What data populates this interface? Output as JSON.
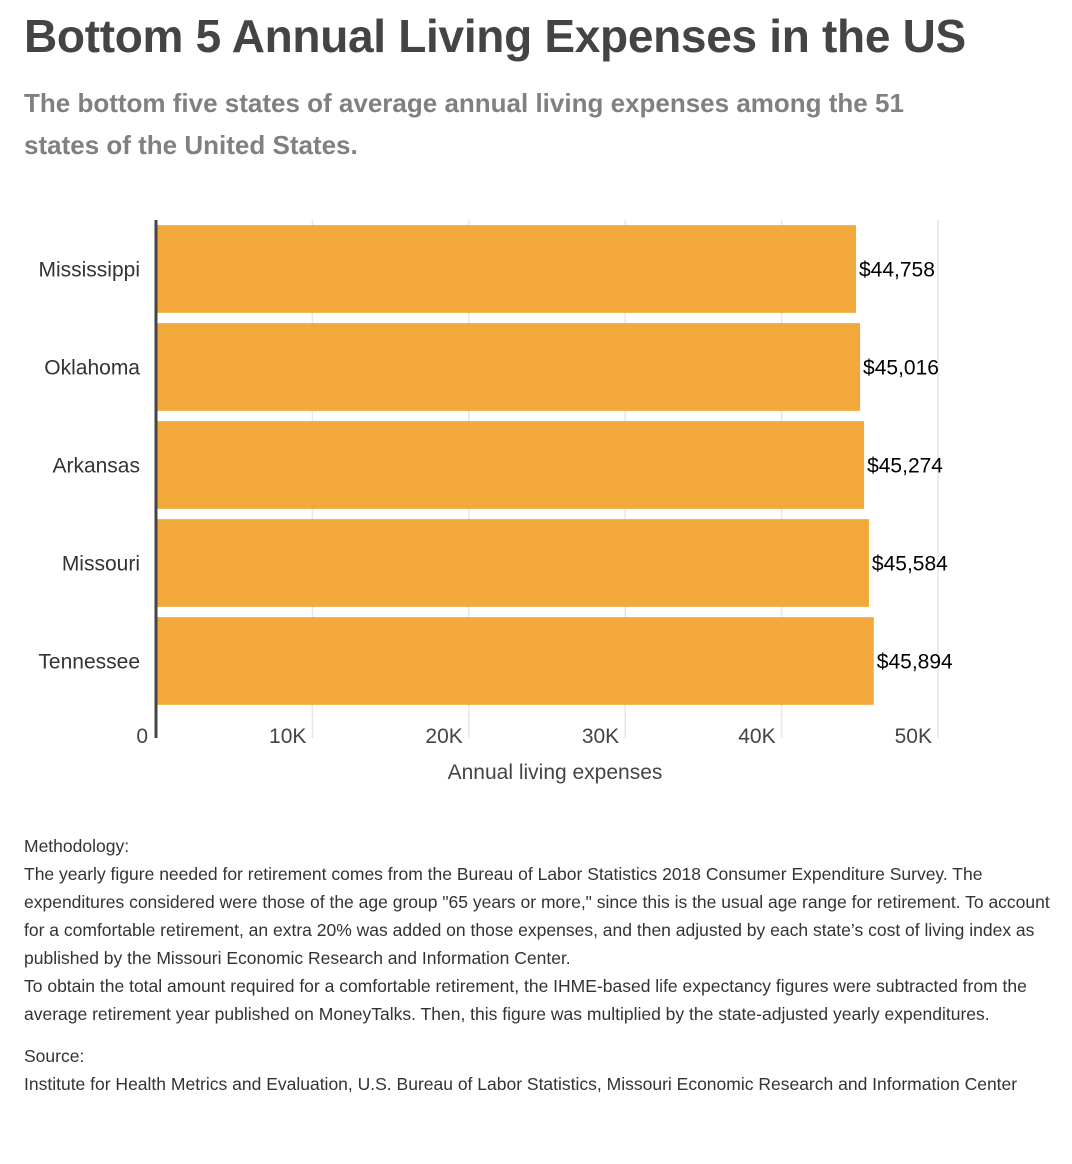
{
  "chart_data": {
    "type": "bar",
    "orientation": "horizontal",
    "title": "Bottom 5 Annual Living Expenses in the US",
    "subtitle": "The bottom five states of average annual living expenses among the 51 states of the United States.",
    "categories": [
      "Mississippi",
      "Oklahoma",
      "Arkansas",
      "Missouri",
      "Tennessee"
    ],
    "values": [
      44758,
      45016,
      45274,
      45584,
      45894
    ],
    "data_labels": [
      "$44,758",
      "$45,016",
      "$45,274",
      "$45,584",
      "$45,894"
    ],
    "xlabel": "Annual living expenses",
    "ylabel": "",
    "xlim": [
      0,
      50000
    ],
    "x_ticks": [
      0,
      10000,
      20000,
      30000,
      40000,
      50000
    ],
    "x_tick_labels": [
      "0",
      "10K",
      "20K",
      "30K",
      "40K",
      "50K"
    ],
    "grid": true,
    "bar_color": "#F3A83B",
    "grid_color": "#E6E6E6",
    "axis_color": "#444444"
  },
  "notes": {
    "methodology_heading": "Methodology:",
    "methodology_p1": "The yearly figure needed for retirement comes from the Bureau of Labor Statistics 2018 Consumer Expenditure Survey. The expenditures considered were those of the age group \"65 years or more,\" since this is the usual age range for retirement. To account for a comfortable retirement, an extra 20% was added on those expenses, and then adjusted by each state’s cost of living index as published by the Missouri Economic Research and Information Center.",
    "methodology_p2": "To obtain the total amount required for a comfortable retirement, the IHME-based life expectancy figures were subtracted from the average retirement year published on MoneyTalks. Then, this figure was multiplied by the state-adjusted yearly expenditures.",
    "source_heading": "Source:",
    "source_text": "Institute for Health Metrics and Evaluation, U.S. Bureau of Labor Statistics, Missouri Economic Research and Information Center"
  }
}
